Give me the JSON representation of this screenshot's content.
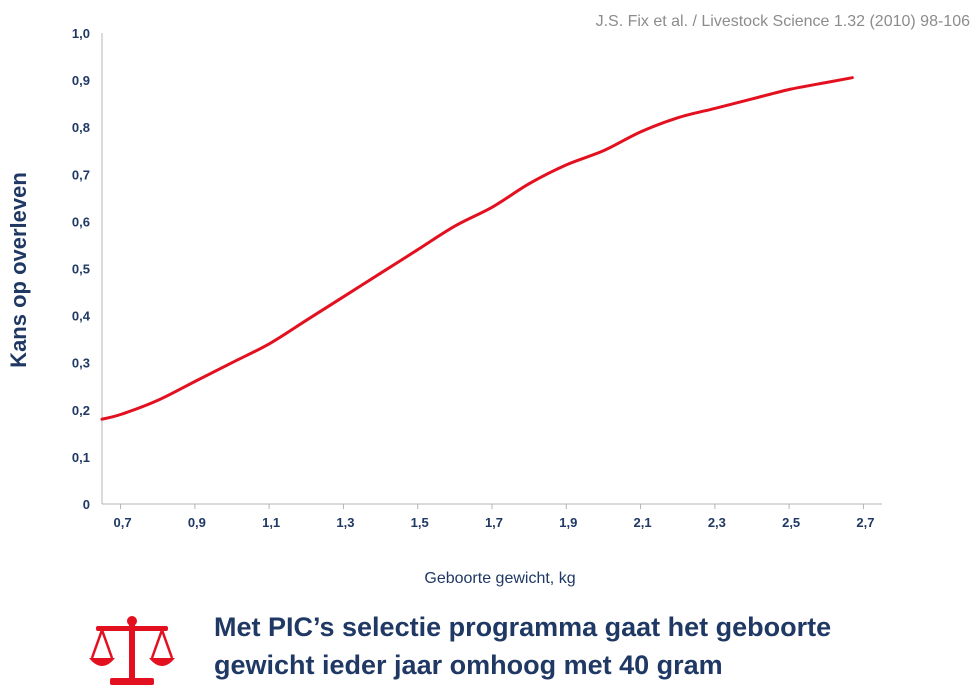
{
  "source": "J.S. Fix et al. / Livestock Science 1.32 (2010) 98-106",
  "footer": {
    "line1": "Met PIC’s selectie programma gaat het geboorte",
    "line2": "gewicht ieder jaar omhoog met 40 gram",
    "icon": "scale-icon",
    "icon_color": "#e3101f"
  },
  "colors": {
    "line": "#e3101f",
    "text": "#1f3864",
    "axis": "#b4b4b4",
    "source": "#8c8c8c"
  },
  "chart_data": {
    "type": "line",
    "xlabel": "Geboorte gewicht, kg",
    "ylabel": "Kans op overleven",
    "xlim": [
      0.65,
      2.75
    ],
    "ylim": [
      0,
      1.0
    ],
    "x_ticks": [
      0.7,
      0.9,
      1.1,
      1.3,
      1.5,
      1.7,
      1.9,
      2.1,
      2.3,
      2.5,
      2.7
    ],
    "x_tick_labels": [
      "0,7",
      "0,9",
      "1,1",
      "1,3",
      "1,5",
      "1,7",
      "1,9",
      "2,1",
      "2,3",
      "2,5",
      "2,7"
    ],
    "y_ticks": [
      0,
      0.1,
      0.2,
      0.3,
      0.4,
      0.5,
      0.6,
      0.7,
      0.8,
      0.9,
      1.0
    ],
    "y_tick_labels": [
      "0",
      "0,1",
      "0,2",
      "0,3",
      "0,4",
      "0,5",
      "0,6",
      "0,7",
      "0,8",
      "0,9",
      "1,0"
    ],
    "grid": false,
    "legend": "none",
    "series": [
      {
        "x": [
          0.65,
          0.7,
          0.8,
          0.9,
          1.0,
          1.1,
          1.2,
          1.3,
          1.4,
          1.5,
          1.6,
          1.7,
          1.8,
          1.9,
          2.0,
          2.1,
          2.2,
          2.3,
          2.4,
          2.5,
          2.6,
          2.67
        ],
        "y": [
          0.18,
          0.19,
          0.22,
          0.26,
          0.3,
          0.34,
          0.39,
          0.44,
          0.49,
          0.54,
          0.59,
          0.63,
          0.68,
          0.72,
          0.75,
          0.79,
          0.82,
          0.84,
          0.86,
          0.88,
          0.895,
          0.905
        ]
      }
    ]
  }
}
